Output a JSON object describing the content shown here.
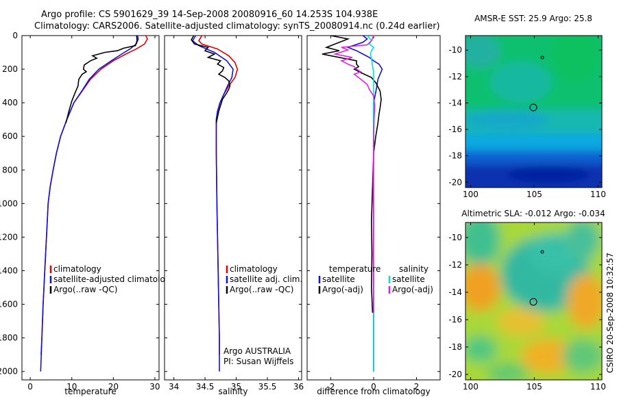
{
  "header": {
    "line1": "Argo profile: CS 5901629_39 14-Sep-2008 20080916_60 14.253S 104.938E",
    "line2": "Climatology: CARS2006. Satellite-adjusted climatology: synTS_20080914.nc (0.24d earlier)"
  },
  "side_caption": "CSIRO 20-Sep-2008 10:32:57",
  "colors": {
    "climatology": "#e00000",
    "satellite": "#1010e0",
    "argo": "#000000",
    "cyan": "#00e0e0",
    "magenta": "#e020e0"
  },
  "chart_data": [
    {
      "type": "line",
      "xlabel": "temperature",
      "xlim": [
        -2,
        31
      ],
      "ylim": [
        2050,
        0
      ],
      "xticks": [
        0,
        10,
        20,
        30
      ],
      "yticks": [
        0,
        200,
        400,
        600,
        800,
        1000,
        1200,
        1400,
        1600,
        1800,
        2000
      ],
      "legend": [
        "climatology",
        "satellite-adjusted climatology",
        "Argo(..raw -QC)"
      ],
      "series": [
        {
          "name": "climatology",
          "color_key": "climatology",
          "points": [
            [
              27.8,
              0
            ],
            [
              28.2,
              20
            ],
            [
              27.5,
              50
            ],
            [
              25.5,
              80
            ],
            [
              23,
              110
            ],
            [
              20,
              150
            ],
            [
              17,
              200
            ],
            [
              14.5,
              260
            ],
            [
              12.5,
              330
            ],
            [
              10.5,
              400
            ],
            [
              8.8,
              500
            ],
            [
              7.3,
              600
            ],
            [
              6.3,
              700
            ],
            [
              5.5,
              800
            ],
            [
              4.8,
              900
            ],
            [
              4.3,
              1000
            ],
            [
              3.9,
              1200
            ],
            [
              3.5,
              1400
            ],
            [
              3.1,
              1600
            ],
            [
              2.8,
              1800
            ],
            [
              2.6,
              1900
            ]
          ]
        },
        {
          "name": "satellite-adjusted climatology",
          "color_key": "satellite",
          "points": [
            [
              25.8,
              0
            ],
            [
              26,
              20
            ],
            [
              25.5,
              50
            ],
            [
              24,
              80
            ],
            [
              22,
              110
            ],
            [
              19.5,
              150
            ],
            [
              16.5,
              200
            ],
            [
              14.2,
              260
            ],
            [
              12.4,
              330
            ],
            [
              10.5,
              400
            ],
            [
              8.8,
              500
            ],
            [
              7.3,
              600
            ],
            [
              6.3,
              700
            ],
            [
              5.5,
              800
            ],
            [
              4.8,
              900
            ],
            [
              4.3,
              1000
            ],
            [
              3.9,
              1200
            ],
            [
              3.5,
              1400
            ],
            [
              3.1,
              1600
            ],
            [
              2.8,
              1800
            ],
            [
              2.5,
              2000
            ]
          ]
        },
        {
          "name": "Argo(..raw -QC)",
          "color_key": "argo",
          "points": [
            [
              25.6,
              0
            ],
            [
              25.7,
              30
            ],
            [
              25.3,
              60
            ],
            [
              22.5,
              75
            ],
            [
              21,
              90
            ],
            [
              18,
              100
            ],
            [
              16.5,
              110
            ],
            [
              15,
              120
            ],
            [
              16,
              135
            ],
            [
              14.5,
              150
            ],
            [
              13,
              175
            ],
            [
              12.8,
              200
            ],
            [
              13.5,
              215
            ],
            [
              12.5,
              230
            ],
            [
              11.7,
              260
            ],
            [
              11.5,
              300
            ],
            [
              10.8,
              340
            ],
            [
              10,
              390
            ],
            [
              9.3,
              450
            ],
            [
              8.6,
              520
            ]
          ]
        }
      ]
    },
    {
      "type": "line",
      "xlabel": "salinity",
      "xlim": [
        33.85,
        36.05
      ],
      "ylim": [
        2050,
        0
      ],
      "xticks": [
        34,
        34.5,
        35,
        35.5,
        36
      ],
      "legend": [
        "climatology",
        "satellite adj. clim.",
        "Argo(..raw -QC)"
      ],
      "series": [
        {
          "name": "climatology",
          "color_key": "climatology",
          "points": [
            [
              34.45,
              0
            ],
            [
              34.4,
              30
            ],
            [
              34.45,
              50
            ],
            [
              34.7,
              80
            ],
            [
              34.88,
              120
            ],
            [
              34.98,
              160
            ],
            [
              35.02,
              200
            ],
            [
              34.98,
              250
            ],
            [
              34.88,
              300
            ],
            [
              34.8,
              350
            ],
            [
              34.74,
              400
            ],
            [
              34.7,
              450
            ],
            [
              34.68,
              500
            ],
            [
              34.68,
              700
            ],
            [
              34.69,
              1000
            ],
            [
              34.7,
              1200
            ],
            [
              34.71,
              1400
            ],
            [
              34.72,
              1600
            ],
            [
              34.73,
              1800
            ],
            [
              34.73,
              1900
            ]
          ]
        },
        {
          "name": "satellite adj. clim.",
          "color_key": "satellite",
          "points": [
            [
              34.35,
              0
            ],
            [
              34.3,
              30
            ],
            [
              34.4,
              60
            ],
            [
              34.65,
              100
            ],
            [
              34.85,
              150
            ],
            [
              34.95,
              200
            ],
            [
              34.93,
              250
            ],
            [
              34.86,
              300
            ],
            [
              34.8,
              350
            ],
            [
              34.74,
              400
            ],
            [
              34.7,
              450
            ],
            [
              34.68,
              500
            ],
            [
              34.68,
              700
            ],
            [
              34.69,
              1000
            ],
            [
              34.7,
              1200
            ],
            [
              34.71,
              1400
            ],
            [
              34.72,
              1600
            ],
            [
              34.73,
              1800
            ],
            [
              34.73,
              2000
            ]
          ]
        },
        {
          "name": "Argo(..raw -QC)",
          "color_key": "argo",
          "points": [
            [
              34.32,
              0
            ],
            [
              34.28,
              25
            ],
            [
              34.33,
              50
            ],
            [
              34.55,
              70
            ],
            [
              34.5,
              90
            ],
            [
              34.65,
              110
            ],
            [
              34.55,
              130
            ],
            [
              34.75,
              150
            ],
            [
              34.7,
              170
            ],
            [
              34.8,
              190
            ],
            [
              34.78,
              210
            ],
            [
              34.72,
              230
            ],
            [
              34.82,
              250
            ],
            [
              34.88,
              270
            ],
            [
              34.9,
              300
            ],
            [
              34.88,
              320
            ],
            [
              34.85,
              340
            ],
            [
              34.78,
              380
            ],
            [
              34.72,
              450
            ],
            [
              34.68,
              520
            ]
          ]
        }
      ],
      "annotations": [
        "Argo AUSTRALIA",
        "PI: Susan Wijffels"
      ]
    },
    {
      "type": "line",
      "xlabel": "difference from climatology",
      "xlim": [
        -3.1,
        3.1
      ],
      "ylim": [
        2050,
        0
      ],
      "xticks": [
        -2,
        0,
        2
      ],
      "legend": [
        "temperature",
        "satellite",
        "Argo(-adj)",
        "salinity",
        "satellite",
        "Argo(-adj)"
      ],
      "series": [
        {
          "name": "temperature satellite",
          "color_key": "satellite",
          "points": [
            [
              -0.5,
              0
            ],
            [
              -0.3,
              20
            ],
            [
              -0.5,
              40
            ],
            [
              -1.2,
              70
            ],
            [
              -0.8,
              90
            ],
            [
              -0.5,
              110
            ],
            [
              -0.2,
              130
            ],
            [
              0,
              150
            ],
            [
              0.25,
              170
            ],
            [
              0.4,
              200
            ],
            [
              0.3,
              230
            ],
            [
              0.2,
              260
            ],
            [
              0.15,
              300
            ],
            [
              0.08,
              350
            ],
            [
              0,
              400
            ],
            [
              0,
              2000
            ]
          ]
        },
        {
          "name": "temperature Argo(-adj)",
          "color_key": "argo",
          "points": [
            [
              -2,
              0
            ],
            [
              -1.2,
              20
            ],
            [
              -1.5,
              35
            ],
            [
              -1.8,
              50
            ],
            [
              -2.2,
              70
            ],
            [
              -1.9,
              80
            ],
            [
              -1.6,
              90
            ],
            [
              -2.4,
              110
            ],
            [
              -1.8,
              125
            ],
            [
              -1.2,
              140
            ],
            [
              -0.8,
              150
            ],
            [
              -0.8,
              170
            ],
            [
              -0.7,
              185
            ],
            [
              -0.9,
              200
            ],
            [
              -0.6,
              220
            ],
            [
              -0.1,
              250
            ],
            [
              0.1,
              280
            ],
            [
              0.3,
              330
            ],
            [
              0.35,
              380
            ],
            [
              0.3,
              430
            ],
            [
              0.25,
              470
            ],
            [
              0.2,
              520
            ],
            [
              0.1,
              600
            ],
            [
              0,
              700
            ],
            [
              -0.05,
              900
            ],
            [
              -0.1,
              1100
            ],
            [
              -0.08,
              1300
            ],
            [
              -0.1,
              1500
            ],
            [
              -0.05,
              1650
            ]
          ]
        },
        {
          "name": "salinity satellite",
          "color_key": "cyan",
          "points": [
            [
              -0.3,
              0
            ],
            [
              -0.1,
              30
            ],
            [
              -0.2,
              50
            ],
            [
              0,
              70
            ],
            [
              -0.1,
              90
            ],
            [
              -0.15,
              110
            ],
            [
              -0.1,
              140
            ],
            [
              -0.05,
              180
            ],
            [
              0,
              220
            ],
            [
              0,
              2000
            ]
          ]
        },
        {
          "name": "salinity Argo(-adj)",
          "color_key": "magenta",
          "points": [
            [
              0,
              0
            ],
            [
              -0.1,
              30
            ],
            [
              -0.3,
              55
            ],
            [
              -1.5,
              70
            ],
            [
              -1.2,
              85
            ],
            [
              -1.8,
              110
            ],
            [
              -1,
              130
            ],
            [
              -1.5,
              150
            ],
            [
              -1.2,
              170
            ],
            [
              -0.9,
              185
            ],
            [
              -0.8,
              200
            ],
            [
              -0.6,
              215
            ],
            [
              -0.9,
              230
            ],
            [
              -0.6,
              260
            ],
            [
              -0.3,
              290
            ],
            [
              -0.2,
              320
            ],
            [
              0,
              360
            ],
            [
              0.05,
              420
            ],
            [
              0.02,
              500
            ],
            [
              0,
              650
            ],
            [
              -0.02,
              900
            ],
            [
              0,
              1100
            ],
            [
              -0.02,
              1300
            ],
            [
              0,
              1500
            ],
            [
              0,
              1650
            ]
          ]
        }
      ]
    }
  ],
  "maps": [
    {
      "title": "AMSR-E SST: 25.9 Argo: 25.8",
      "xticks": [
        "100",
        "105",
        "110"
      ],
      "yticks": [
        "-10",
        "-12",
        "-14",
        "-16",
        "-18",
        "-20"
      ]
    },
    {
      "title": "Altimetric SLA: -0.012 Argo: -0.034",
      "xticks": [
        "100",
        "105",
        "110"
      ],
      "yticks": [
        "-10",
        "-12",
        "-14",
        "-16",
        "-18",
        "-20"
      ]
    }
  ]
}
